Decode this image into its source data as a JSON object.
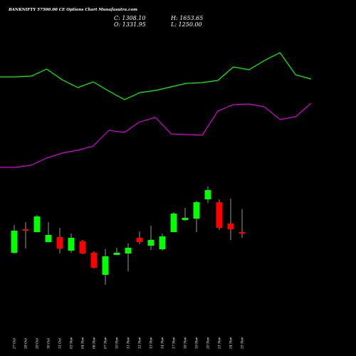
{
  "chart_data": {
    "type": "candlestick",
    "title": "BANKNIFTY 57500.00 CE Options Chart Munafasutra.com",
    "info_labels": [
      "C: 1308.10",
      "O: 1331.95",
      "H: 1653.65",
      "L: 1250.00"
    ],
    "categories": [
      "27 Oct",
      "28 Oct",
      "29 Oct",
      "30 Oct",
      "31 Oct",
      "03 Nov",
      "04 Nov",
      "06 Nov",
      "07 Nov",
      "10 Nov",
      "11 Nov",
      "12 Nov",
      "13 Nov",
      "14 Nov",
      "17 Nov",
      "18 Nov",
      "19 Nov",
      "20 Nov",
      "21 Nov",
      "24 Nov",
      "25 Nov"
    ],
    "open": [
      1040,
      1370,
      1330,
      1190,
      1260,
      1070,
      1200,
      1040,
      730,
      1010,
      1030,
      1250,
      1140,
      1090,
      1330,
      1500,
      1520,
      1790,
      1750,
      1450,
      1331.95
    ],
    "high": [
      1430,
      1470,
      1570,
      1470,
      1390,
      1310,
      1220,
      1060,
      1090,
      1110,
      1170,
      1340,
      1420,
      1310,
      1610,
      1670,
      1770,
      1970,
      1790,
      1800,
      1653.65
    ],
    "low": [
      1030,
      1100,
      1330,
      1190,
      1030,
      1040,
      1020,
      820,
      590,
      1010,
      780,
      1160,
      1080,
      1070,
      1330,
      1490,
      1330,
      1740,
      1360,
      1220,
      1250
    ],
    "close": [
      1350,
      1350,
      1550,
      1290,
      1100,
      1250,
      1030,
      830,
      990,
      1040,
      1110,
      1190,
      1220,
      1270,
      1590,
      1530,
      1750,
      1920,
      1390,
      1370,
      1308.1
    ],
    "up_color": "#00ff00",
    "down_color": "#ff0000",
    "lines": [
      {
        "color": "#00ff00",
        "values": [
          3510,
          3510,
          3520,
          3620,
          3470,
          3360,
          3440,
          3310,
          3190,
          3290,
          3320,
          3370,
          3420,
          3430,
          3460,
          3650,
          3610,
          3740,
          3850,
          3540,
          3480
        ]
      },
      {
        "color": "#dd00dd",
        "values": [
          2240,
          2240,
          2270,
          2370,
          2440,
          2480,
          2540,
          2760,
          2730,
          2880,
          2940,
          2710,
          2700,
          2690,
          3030,
          3120,
          3130,
          3090,
          2910,
          2950,
          3140
        ]
      }
    ],
    "ylim": [
      -410,
      4590
    ]
  }
}
